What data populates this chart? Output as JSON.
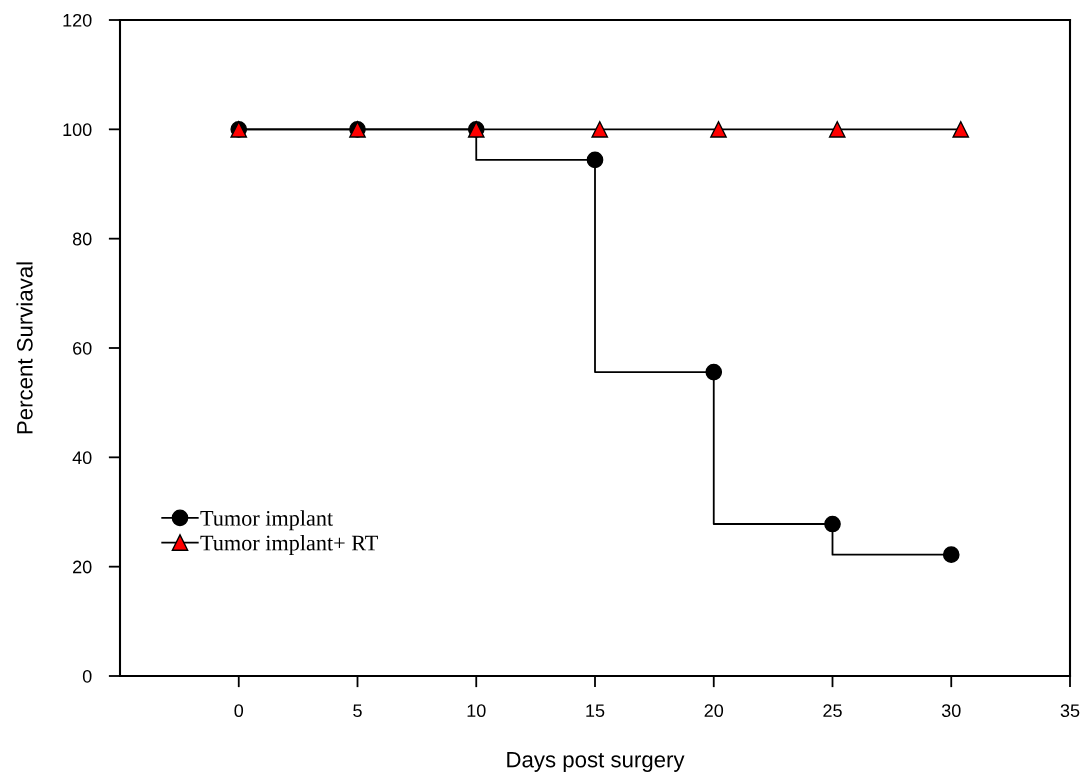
{
  "chart_data": {
    "type": "step",
    "xlabel": "Days post surgery",
    "ylabel": "Percent Surviaval",
    "xlim": [
      -5,
      35
    ],
    "xticks": [
      0,
      5,
      10,
      15,
      20,
      25,
      30,
      35
    ],
    "ylim": [
      0,
      120
    ],
    "yticks": [
      0,
      20,
      40,
      60,
      80,
      100,
      120
    ],
    "grid": false,
    "legend": "bottom left",
    "series": [
      {
        "name": "Tumor implant",
        "color": "#000000",
        "marker": "circle",
        "x": [
          0,
          5,
          10,
          15,
          20,
          25,
          30
        ],
        "values": [
          100,
          100,
          100,
          94.4,
          55.6,
          27.8,
          22.2
        ]
      },
      {
        "name": "Tumor implant+ RT",
        "color": "#ff0000",
        "marker": "triangle",
        "x": [
          0,
          5,
          10,
          15.2,
          20.2,
          25.2,
          30.4
        ],
        "values": [
          100,
          100,
          100,
          100,
          100,
          100,
          100
        ]
      }
    ]
  }
}
